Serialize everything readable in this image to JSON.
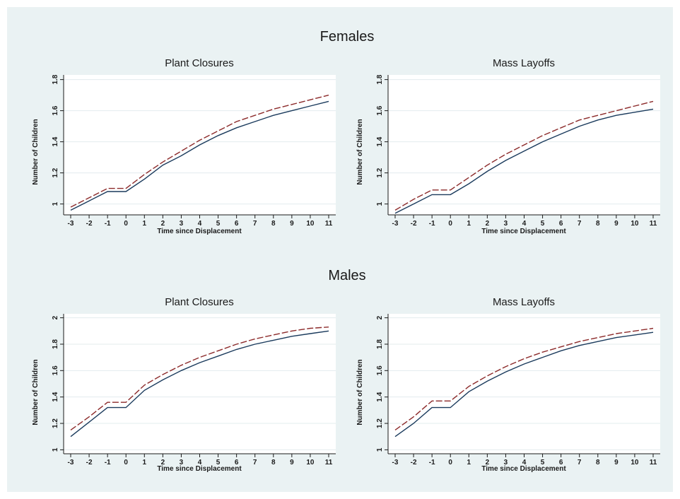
{
  "sections": [
    {
      "title": "Females"
    },
    {
      "title": "Males"
    }
  ],
  "colors": {
    "background": "#eaf2f3",
    "plot_area": "#ffffff",
    "grid": "#e3ecee",
    "solid_series": "#1a3a5c",
    "dashed_series": "#8c2a2a"
  },
  "chart_data": [
    {
      "type": "line",
      "section": "Females",
      "title": "Plant Closures",
      "xlabel": "Time since Displacement",
      "ylabel": "Number of Children",
      "x": [
        -3,
        -2,
        -1,
        0,
        1,
        2,
        3,
        4,
        5,
        6,
        7,
        8,
        9,
        10,
        11
      ],
      "xticks": [
        "-3",
        "-2",
        "-1",
        "0",
        "1",
        "2",
        "3",
        "4",
        "5",
        "6",
        "7",
        "8",
        "9",
        "10",
        "11"
      ],
      "ylim": [
        0.93,
        1.83
      ],
      "yticks": [
        "1",
        "1.2",
        "1.4",
        "1.6",
        "1.8"
      ],
      "grid": true,
      "series": [
        {
          "style": "solid",
          "values": [
            0.96,
            1.02,
            1.08,
            1.08,
            1.16,
            1.25,
            1.31,
            1.38,
            1.44,
            1.49,
            1.53,
            1.57,
            1.6,
            1.63,
            1.66
          ]
        },
        {
          "style": "dashed",
          "values": [
            0.98,
            1.04,
            1.1,
            1.1,
            1.19,
            1.27,
            1.34,
            1.41,
            1.47,
            1.53,
            1.57,
            1.61,
            1.64,
            1.67,
            1.7
          ]
        }
      ]
    },
    {
      "type": "line",
      "section": "Females",
      "title": "Mass Layoffs",
      "xlabel": "Time since Displacement",
      "ylabel": "Number of Children",
      "x": [
        -3,
        -2,
        -1,
        0,
        1,
        2,
        3,
        4,
        5,
        6,
        7,
        8,
        9,
        10,
        11
      ],
      "xticks": [
        "-3",
        "-2",
        "-1",
        "0",
        "1",
        "2",
        "3",
        "4",
        "5",
        "6",
        "7",
        "8",
        "9",
        "10",
        "11"
      ],
      "ylim": [
        0.93,
        1.83
      ],
      "yticks": [
        "1",
        "1.2",
        "1.4",
        "1.6",
        "1.8"
      ],
      "grid": true,
      "series": [
        {
          "style": "solid",
          "values": [
            0.94,
            1.0,
            1.06,
            1.06,
            1.13,
            1.21,
            1.28,
            1.34,
            1.4,
            1.45,
            1.5,
            1.54,
            1.57,
            1.59,
            1.61
          ]
        },
        {
          "style": "dashed",
          "values": [
            0.96,
            1.03,
            1.09,
            1.09,
            1.17,
            1.25,
            1.32,
            1.38,
            1.44,
            1.49,
            1.54,
            1.57,
            1.6,
            1.63,
            1.66
          ]
        }
      ]
    },
    {
      "type": "line",
      "section": "Males",
      "title": "Plant Closures",
      "xlabel": "Time since Displacement",
      "ylabel": "Number of Children",
      "x": [
        -3,
        -2,
        -1,
        0,
        1,
        2,
        3,
        4,
        5,
        6,
        7,
        8,
        9,
        10,
        11
      ],
      "xticks": [
        "-3",
        "-2",
        "-1",
        "0",
        "1",
        "2",
        "3",
        "4",
        "5",
        "6",
        "7",
        "8",
        "9",
        "10",
        "11"
      ],
      "ylim": [
        0.97,
        2.03
      ],
      "yticks": [
        "1",
        "1.2",
        "1.4",
        "1.6",
        "1.8",
        "2"
      ],
      "grid": true,
      "series": [
        {
          "style": "solid",
          "values": [
            1.1,
            1.21,
            1.32,
            1.32,
            1.45,
            1.53,
            1.6,
            1.66,
            1.71,
            1.76,
            1.8,
            1.83,
            1.86,
            1.88,
            1.9
          ]
        },
        {
          "style": "dashed",
          "values": [
            1.15,
            1.25,
            1.36,
            1.36,
            1.49,
            1.57,
            1.64,
            1.7,
            1.75,
            1.8,
            1.84,
            1.87,
            1.9,
            1.92,
            1.93
          ]
        }
      ]
    },
    {
      "type": "line",
      "section": "Males",
      "title": "Mass Layoffs",
      "xlabel": "Time since Displacement",
      "ylabel": "Number of Children",
      "x": [
        -3,
        -2,
        -1,
        0,
        1,
        2,
        3,
        4,
        5,
        6,
        7,
        8,
        9,
        10,
        11
      ],
      "xticks": [
        "-3",
        "-2",
        "-1",
        "0",
        "1",
        "2",
        "3",
        "4",
        "5",
        "6",
        "7",
        "8",
        "9",
        "10",
        "11"
      ],
      "ylim": [
        0.97,
        2.03
      ],
      "yticks": [
        "1",
        "1.2",
        "1.4",
        "1.6",
        "1.8",
        "2"
      ],
      "grid": true,
      "series": [
        {
          "style": "solid",
          "values": [
            1.1,
            1.2,
            1.32,
            1.32,
            1.44,
            1.52,
            1.59,
            1.65,
            1.7,
            1.75,
            1.79,
            1.82,
            1.85,
            1.87,
            1.89
          ]
        },
        {
          "style": "dashed",
          "values": [
            1.15,
            1.25,
            1.37,
            1.37,
            1.48,
            1.56,
            1.63,
            1.69,
            1.74,
            1.78,
            1.82,
            1.85,
            1.88,
            1.9,
            1.92
          ]
        }
      ]
    }
  ]
}
